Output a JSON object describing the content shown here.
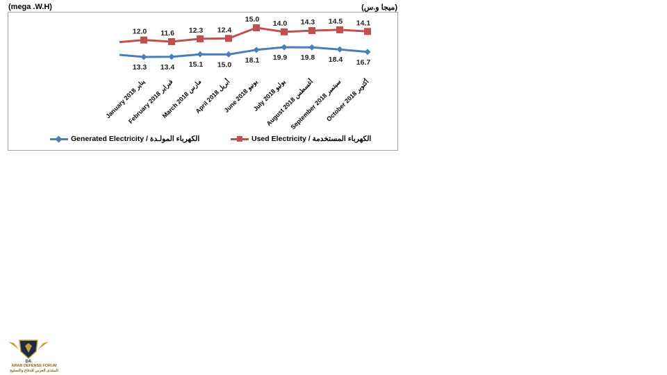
{
  "units": {
    "left": "(mega .W.H)",
    "right": "(ميجا و.س)"
  },
  "chart_data": {
    "type": "line",
    "categories": [
      "January 2018 يناير",
      "February 2018 فبراير",
      "March 2018 مارس",
      "April 2018 أبريل",
      "June 2018 يونيو",
      "July 2018 يوليو",
      "August 2018 أغسطس",
      "September 2018 سبتمبر",
      "October 2018 أكتوبر"
    ],
    "series": [
      {
        "name": "Used Electricity / الكهرباء المستخدمة",
        "color": "#c0504d",
        "marker": "square",
        "values": [
          12.0,
          11.6,
          12.3,
          12.4,
          15.0,
          14.0,
          14.3,
          14.5,
          14.1
        ],
        "labels": [
          "12.0",
          "11.6",
          "12.3",
          "12.4",
          "15.0",
          "14.0",
          "14.3",
          "14.5",
          "14.1"
        ]
      },
      {
        "name": "Generated Electricity / الكهرباء المولـدة",
        "color": "#4a7ebb",
        "marker": "diamond",
        "values": [
          13.3,
          13.4,
          15.1,
          15.0,
          18.1,
          19.9,
          19.8,
          18.4,
          16.7
        ],
        "labels": [
          "13.3",
          "13.4",
          "15.1",
          "15.0",
          "18.1",
          "19.9",
          "19.8",
          "18.4",
          "16.7"
        ]
      }
    ],
    "grid": false,
    "legend_position": "bottom"
  },
  "legend": {
    "generated": "Generated Electricity / الكهرباء المولـدة",
    "used": "Used Electricity / الكهرباء المستخدمة"
  },
  "logo": {
    "line1": "ARAB DEFENSE FORUM",
    "line2": "المنتدى العربي للدفاع والتسليح",
    "initials": "DA"
  }
}
